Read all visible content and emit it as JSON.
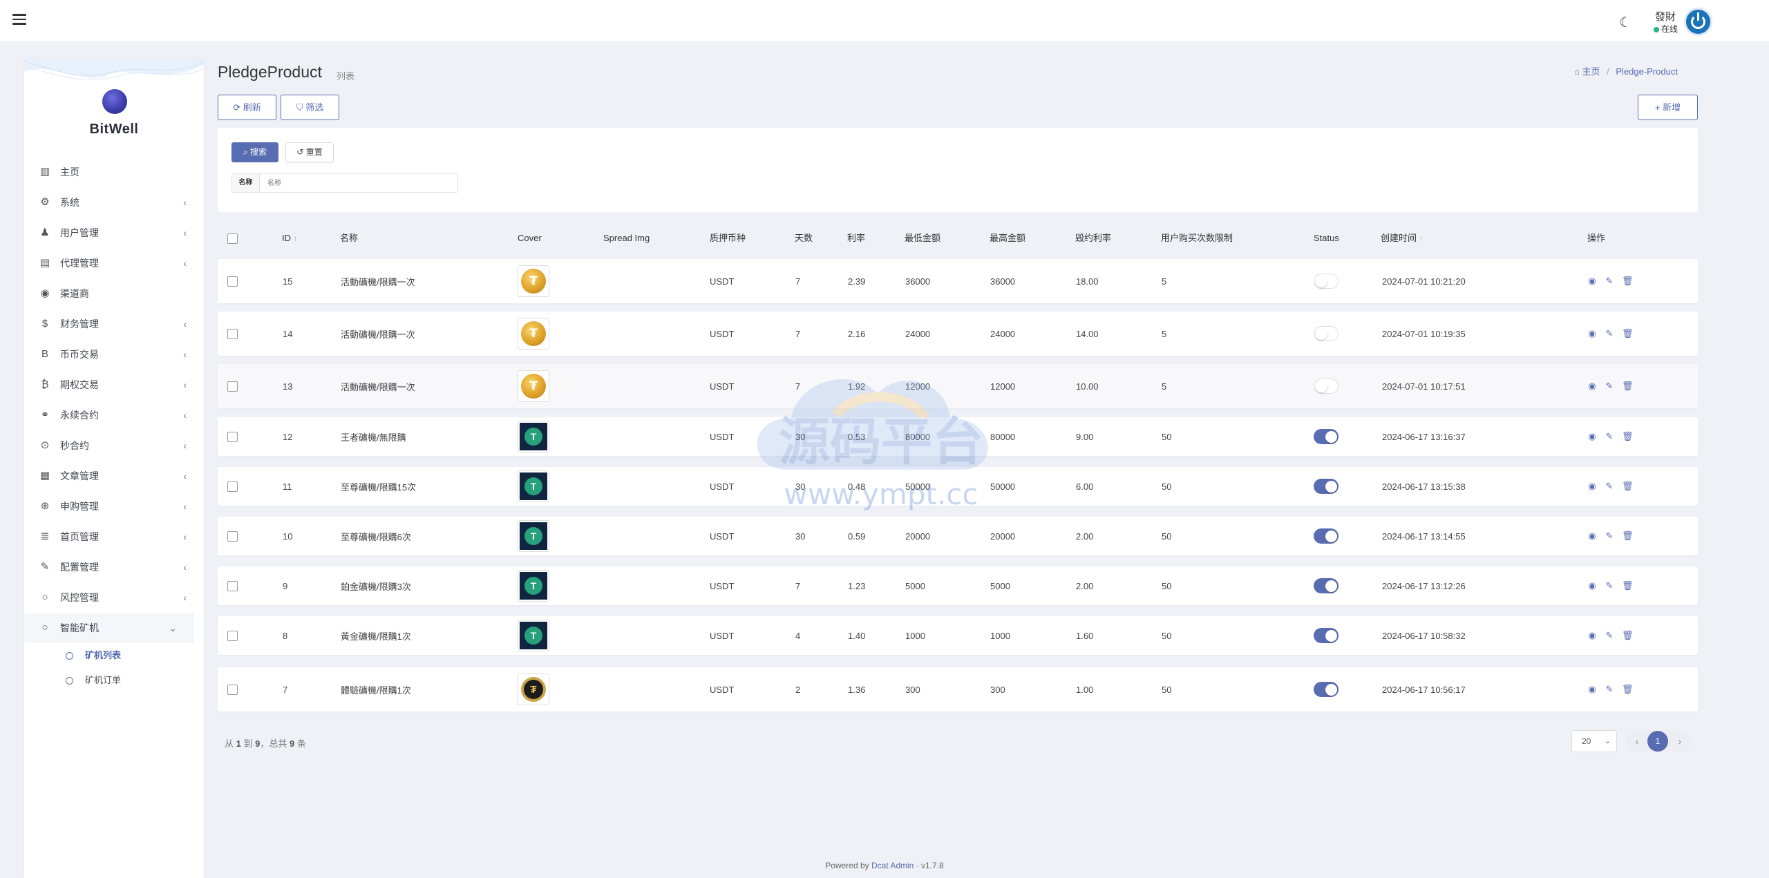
{
  "header": {
    "user_name": "發財",
    "user_status": "在线"
  },
  "sidebar": {
    "brand": "BitWell",
    "items": [
      {
        "label": "主页",
        "icon": "bar-chart-icon",
        "glyph": "▥",
        "expandable": false
      },
      {
        "label": "系统",
        "icon": "gear-icon",
        "glyph": "⚙",
        "expandable": true
      },
      {
        "label": "用户管理",
        "icon": "user-icon",
        "glyph": "♟",
        "expandable": true
      },
      {
        "label": "代理管理",
        "icon": "id-card-icon",
        "glyph": "▤",
        "expandable": true
      },
      {
        "label": "渠道商",
        "icon": "user-circle-icon",
        "glyph": "◉",
        "expandable": false
      },
      {
        "label": "财务管理",
        "icon": "dollar-icon",
        "glyph": "$",
        "expandable": true
      },
      {
        "label": "币币交易",
        "icon": "bitcoin-icon",
        "glyph": "B",
        "expandable": true
      },
      {
        "label": "期权交易",
        "icon": "bitcoin-circle-icon",
        "glyph": "₿",
        "expandable": true
      },
      {
        "label": "永续合约",
        "icon": "link-icon",
        "glyph": "⚭",
        "expandable": true
      },
      {
        "label": "秒合约",
        "icon": "dot-circle-icon",
        "glyph": "⊙",
        "expandable": true
      },
      {
        "label": "文章管理",
        "icon": "newspaper-icon",
        "glyph": "▦",
        "expandable": true
      },
      {
        "label": "申购管理",
        "icon": "globe-icon",
        "glyph": "⊕",
        "expandable": true
      },
      {
        "label": "首页管理",
        "icon": "list-icon",
        "glyph": "≣",
        "expandable": true
      },
      {
        "label": "配置管理",
        "icon": "wrench-icon",
        "glyph": "✎",
        "expandable": true
      },
      {
        "label": "风控管理",
        "icon": "circle-icon",
        "glyph": "○",
        "expandable": true
      },
      {
        "label": "智能矿机",
        "icon": "circle-icon",
        "glyph": "○",
        "expandable": true,
        "open": true
      }
    ],
    "sub_items": [
      {
        "label": "矿机列表",
        "active": true
      },
      {
        "label": "矿机订单",
        "active": false
      }
    ]
  },
  "page": {
    "title": "PledgeProduct",
    "subtitle": "列表",
    "breadcrumb_home": "主页",
    "breadcrumb_current": "Pledge-Product"
  },
  "toolbar": {
    "refresh_label": "刷新",
    "filter_label": "筛选",
    "new_label": "新增"
  },
  "filter": {
    "search_label": "搜索",
    "reset_label": "重置",
    "name_label": "名称",
    "name_placeholder": "名称"
  },
  "table": {
    "columns": [
      "ID",
      "名称",
      "Cover",
      "Spread Img",
      "质押币种",
      "天数",
      "利率",
      "最低金额",
      "最高金额",
      "毁约利率",
      "用户购买次数限制",
      "Status",
      "创建时间",
      "操作"
    ],
    "rows": [
      {
        "id": "15",
        "name": "活動礦機/限購一次",
        "cover": "gold",
        "currency": "USDT",
        "days": "7",
        "rate": "2.39",
        "min": "36000",
        "max": "36000",
        "penalty": "18.00",
        "limit": "5",
        "status": false,
        "created": "2024-07-01 10:21:20"
      },
      {
        "id": "14",
        "name": "活動礦機/限購一次",
        "cover": "gold",
        "currency": "USDT",
        "days": "7",
        "rate": "2.16",
        "min": "24000",
        "max": "24000",
        "penalty": "14.00",
        "limit": "5",
        "status": false,
        "created": "2024-07-01 10:19:35"
      },
      {
        "id": "13",
        "name": "活動礦機/限購一次",
        "cover": "gold",
        "currency": "USDT",
        "days": "7",
        "rate": "1.92",
        "min": "12000",
        "max": "12000",
        "penalty": "10.00",
        "limit": "5",
        "status": false,
        "created": "2024-07-01 10:17:51"
      },
      {
        "id": "12",
        "name": "王者礦機/無限購",
        "cover": "tether",
        "currency": "USDT",
        "days": "30",
        "rate": "0.53",
        "min": "80000",
        "max": "80000",
        "penalty": "9.00",
        "limit": "50",
        "status": true,
        "created": "2024-06-17 13:16:37"
      },
      {
        "id": "11",
        "name": "至尊礦機/限購15次",
        "cover": "tether",
        "currency": "USDT",
        "days": "30",
        "rate": "0.48",
        "min": "50000",
        "max": "50000",
        "penalty": "6.00",
        "limit": "50",
        "status": true,
        "created": "2024-06-17 13:15:38"
      },
      {
        "id": "10",
        "name": "至尊礦機/限購6次",
        "cover": "tether",
        "currency": "USDT",
        "days": "30",
        "rate": "0.59",
        "min": "20000",
        "max": "20000",
        "penalty": "2.00",
        "limit": "50",
        "status": true,
        "created": "2024-06-17 13:14:55"
      },
      {
        "id": "9",
        "name": "鉑金礦機/限購3次",
        "cover": "tether",
        "currency": "USDT",
        "days": "7",
        "rate": "1.23",
        "min": "5000",
        "max": "5000",
        "penalty": "2.00",
        "limit": "50",
        "status": true,
        "created": "2024-06-17 13:12:26"
      },
      {
        "id": "8",
        "name": "黃金礦機/限購1次",
        "cover": "tether",
        "currency": "USDT",
        "days": "4",
        "rate": "1.40",
        "min": "1000",
        "max": "1000",
        "penalty": "1.60",
        "limit": "50",
        "status": true,
        "created": "2024-06-17 10:58:32"
      },
      {
        "id": "7",
        "name": "體驗礦機/限購1次",
        "cover": "black",
        "currency": "USDT",
        "days": "2",
        "rate": "1.36",
        "min": "300",
        "max": "300",
        "penalty": "1.00",
        "limit": "50",
        "status": true,
        "created": "2024-06-17 10:56:17"
      }
    ]
  },
  "pagination": {
    "summary_pre": "从",
    "from": "1",
    "summary_mid1": "到",
    "to": "9",
    "summary_mid2": "，总共",
    "total": "9",
    "summary_post": "条",
    "per_page": "20",
    "current_page": "1"
  },
  "footer": {
    "powered_by": "Powered by",
    "link": "Dcat Admin",
    "version": "v1.7.8"
  },
  "watermark": {
    "line1": "源码平台",
    "line2": "www.ympt.cc"
  },
  "colors": {
    "primary": "#586cb1",
    "background": "#eff1f6",
    "online": "#21b978"
  }
}
